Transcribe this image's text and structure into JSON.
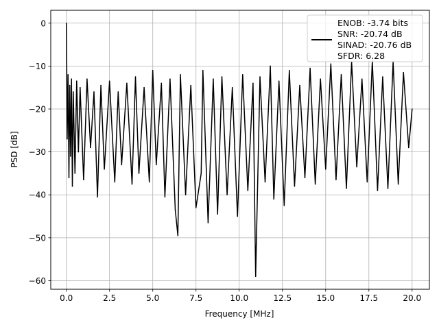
{
  "chart_data": {
    "type": "line",
    "title": "",
    "xlabel": "Frequency [MHz]",
    "ylabel": "PSD [dB]",
    "xlim": [
      -0.9,
      21.0
    ],
    "ylim": [
      -62.0,
      3.0
    ],
    "xticks": [
      0.0,
      2.5,
      5.0,
      7.5,
      10.0,
      12.5,
      15.0,
      17.5,
      20.0
    ],
    "xtick_labels": [
      "0.0",
      "2.5",
      "5.0",
      "7.5",
      "10.0",
      "12.5",
      "15.0",
      "17.5",
      "20.0"
    ],
    "yticks": [
      0,
      -10,
      -20,
      -30,
      -40,
      -50,
      -60
    ],
    "ytick_labels": [
      "0",
      "−10",
      "−20",
      "−30",
      "−40",
      "−50",
      "−60"
    ],
    "grid": true,
    "legend_position": "top-right",
    "legend": {
      "lines": [
        "ENOB: -3.74 bits",
        "SNR: -20.74 dB",
        "SINAD: -20.76 dB",
        "SFDR: 6.28"
      ]
    },
    "colors": {
      "line": "#000000",
      "grid": "#b0b0b0"
    },
    "series": [
      {
        "x": [
          0.0,
          0.02,
          0.05,
          0.1,
          0.15,
          0.2,
          0.25,
          0.3,
          0.35,
          0.4,
          0.5,
          0.6,
          0.7,
          0.8,
          1.0,
          1.2,
          1.4,
          1.6,
          1.8,
          2.0,
          2.2,
          2.5,
          2.8,
          3.0,
          3.2,
          3.5,
          3.8,
          4.0,
          4.2,
          4.5,
          4.8,
          5.0,
          5.2,
          5.5,
          5.7,
          6.0,
          6.3,
          6.45,
          6.6,
          6.9,
          7.2,
          7.5,
          7.8,
          7.9,
          8.2,
          8.5,
          8.75,
          9.0,
          9.3,
          9.6,
          9.9,
          10.2,
          10.5,
          10.8,
          10.95,
          11.2,
          11.5,
          11.8,
          12.0,
          12.3,
          12.6,
          12.9,
          13.2,
          13.5,
          13.8,
          14.1,
          14.4,
          14.7,
          15.0,
          15.3,
          15.6,
          15.9,
          16.2,
          16.5,
          16.8,
          17.1,
          17.4,
          17.7,
          18.0,
          18.3,
          18.6,
          18.9,
          19.2,
          19.5,
          19.8,
          20.0
        ],
        "y": [
          0.0,
          -7.3,
          -27.0,
          -12.0,
          -36.0,
          -14.5,
          -31.0,
          -13.0,
          -38.0,
          -16.0,
          -35.0,
          -13.5,
          -30.0,
          -15.0,
          -36.5,
          -13.0,
          -29.0,
          -16.0,
          -40.5,
          -14.5,
          -34.0,
          -13.5,
          -37.0,
          -16.0,
          -33.0,
          -14.0,
          -37.5,
          -12.5,
          -35.0,
          -15.0,
          -37.0,
          -11.0,
          -33.0,
          -14.0,
          -40.5,
          -13.0,
          -43.5,
          -49.5,
          -12.0,
          -40.0,
          -14.5,
          -43.0,
          -35.0,
          -11.0,
          -46.5,
          -13.0,
          -44.5,
          -12.5,
          -40.0,
          -15.0,
          -45.0,
          -12.0,
          -39.0,
          -14.0,
          -59.0,
          -12.5,
          -37.0,
          -10.0,
          -41.0,
          -13.5,
          -42.5,
          -11.0,
          -38.0,
          -14.5,
          -36.0,
          -10.5,
          -37.5,
          -13.0,
          -34.0,
          -9.5,
          -36.5,
          -12.0,
          -38.5,
          -9.0,
          -33.5,
          -13.0,
          -37.0,
          -8.8,
          -39.0,
          -12.5,
          -38.5,
          -9.0,
          -37.5,
          -11.5,
          -29.0,
          -20.0
        ]
      }
    ]
  }
}
